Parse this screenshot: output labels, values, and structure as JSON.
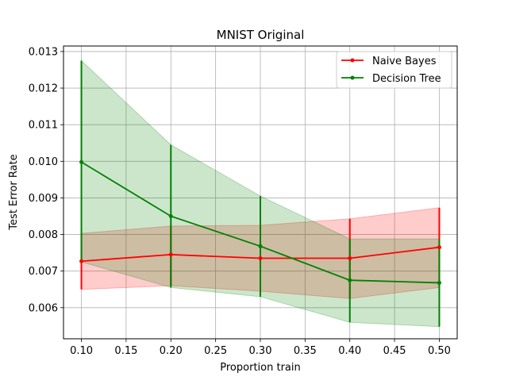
{
  "chart_data": {
    "type": "line",
    "title": "MNIST Original",
    "xlabel": "Proportion train",
    "ylabel": "Test Error Rate",
    "xlim": [
      0.08,
      0.52
    ],
    "ylim": [
      0.00515,
      0.01315
    ],
    "x_ticks": [
      0.1,
      0.15,
      0.2,
      0.25,
      0.3,
      0.35,
      0.4,
      0.45,
      0.5
    ],
    "x_tick_labels": [
      "0.10",
      "0.15",
      "0.20",
      "0.25",
      "0.30",
      "0.35",
      "0.40",
      "0.45",
      "0.50"
    ],
    "y_ticks": [
      0.006,
      0.007,
      0.008,
      0.009,
      0.01,
      0.011,
      0.012,
      0.013
    ],
    "y_tick_labels": [
      "0.006",
      "0.007",
      "0.008",
      "0.009",
      "0.010",
      "0.011",
      "0.012",
      "0.013"
    ],
    "grid": true,
    "legend_position": "top-right",
    "x": [
      0.1,
      0.2,
      0.3,
      0.4,
      0.5
    ],
    "series": [
      {
        "name": "Naive Bayes",
        "color": "#ff0000",
        "band_color": "#ff0000",
        "values": [
          0.00727,
          0.00745,
          0.00735,
          0.00735,
          0.00765
        ],
        "lower": [
          0.0065,
          0.0066,
          0.00645,
          0.00625,
          0.00655
        ],
        "upper": [
          0.00803,
          0.00823,
          0.00825,
          0.00843,
          0.00873
        ]
      },
      {
        "name": "Decision Tree",
        "color": "#008000",
        "band_color": "#008000",
        "values": [
          0.00998,
          0.0085,
          0.00768,
          0.00675,
          0.00668
        ],
        "lower": [
          0.00725,
          0.00655,
          0.0063,
          0.0056,
          0.00548
        ],
        "upper": [
          0.01275,
          0.01045,
          0.00905,
          0.00788,
          0.00788
        ]
      }
    ]
  }
}
